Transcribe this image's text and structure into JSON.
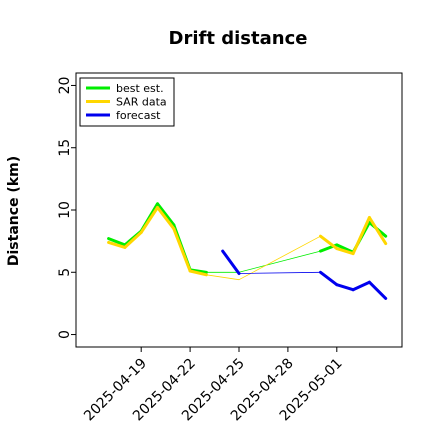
{
  "chart_data": {
    "type": "line",
    "title": "Drift distance",
    "ylabel": "Distance (km)",
    "xlabel": "",
    "ylim": [
      -1,
      21
    ],
    "xlim": [
      "2025-04-15",
      "2025-05-05"
    ],
    "y_ticks": [
      0,
      5,
      10,
      15,
      20
    ],
    "x_ticks": [
      "2025-04-19",
      "2025-04-22",
      "2025-04-25",
      "2025-04-28",
      "2025-05-01"
    ],
    "grid": false,
    "legend_position": "top-left",
    "series": [
      {
        "name": "best est.",
        "color": "#00ee00",
        "x": [
          "2025-04-17",
          "2025-04-18",
          "2025-04-19",
          "2025-04-20",
          "2025-04-21",
          "2025-04-22",
          "2025-04-23",
          "2025-04-25",
          "2025-04-30",
          "2025-05-01",
          "2025-05-02",
          "2025-05-03",
          "2025-05-04"
        ],
        "y": [
          7.7,
          7.2,
          8.3,
          10.5,
          8.8,
          5.2,
          5.0,
          5.0,
          6.7,
          7.2,
          6.6,
          9.0,
          7.9
        ]
      },
      {
        "name": "SAR data",
        "color": "#ffd700",
        "x": [
          "2025-04-17",
          "2025-04-18",
          "2025-04-19",
          "2025-04-20",
          "2025-04-21",
          "2025-04-22",
          "2025-04-23",
          "2025-04-25",
          "2025-04-30",
          "2025-05-01",
          "2025-05-02",
          "2025-05-03",
          "2025-05-04"
        ],
        "y": [
          7.4,
          7.0,
          8.2,
          10.2,
          8.5,
          5.1,
          4.8,
          4.4,
          7.9,
          6.9,
          6.5,
          9.4,
          7.3
        ]
      },
      {
        "name": "forecast",
        "color": "#0000ee",
        "x": [
          "2025-04-24",
          "2025-04-25",
          "2025-04-30",
          "2025-05-01",
          "2025-05-02",
          "2025-05-03",
          "2025-05-04"
        ],
        "y": [
          6.7,
          4.9,
          5.0,
          4.0,
          3.6,
          4.2,
          2.9
        ]
      }
    ]
  }
}
